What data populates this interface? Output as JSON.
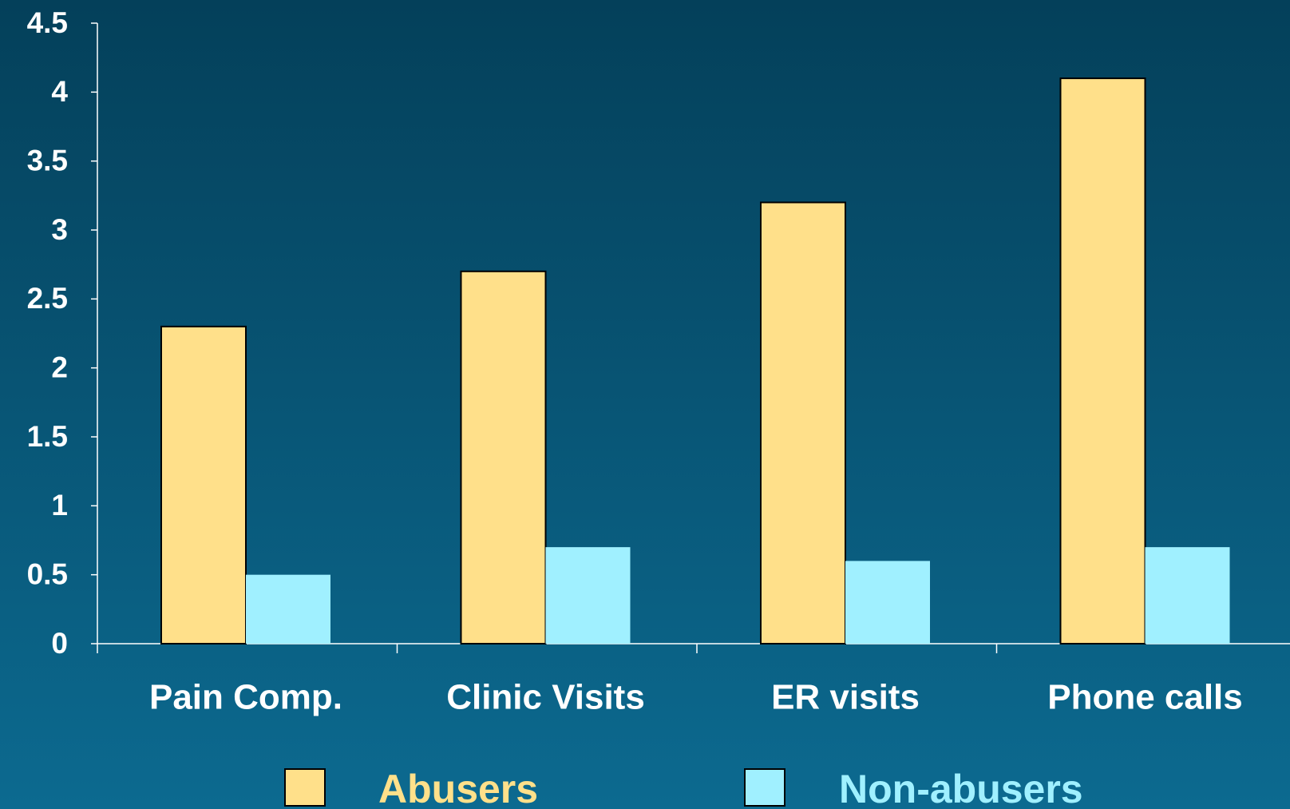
{
  "chart_data": {
    "type": "bar",
    "categories": [
      "Pain Comp.",
      "Clinic Visits",
      "ER visits",
      "Phone calls"
    ],
    "series": [
      {
        "name": "Abusers",
        "color": "#ffe08a",
        "values": [
          2.3,
          2.7,
          3.2,
          4.1
        ]
      },
      {
        "name": "Non-abusers",
        "color": "#a0f0ff",
        "values": [
          0.5,
          0.7,
          0.6,
          0.7
        ]
      }
    ],
    "ylim": [
      0,
      4.5
    ],
    "yticks": [
      0,
      0.5,
      1,
      1.5,
      2,
      2.5,
      3,
      3.5,
      4,
      4.5
    ],
    "grid": false,
    "legend": "bottom"
  }
}
